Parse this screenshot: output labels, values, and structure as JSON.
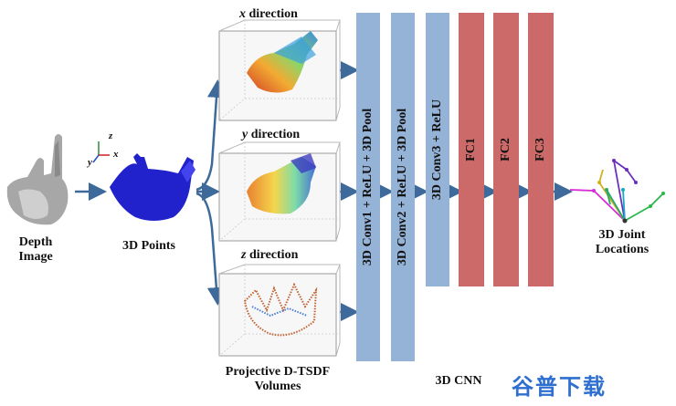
{
  "labels": {
    "depth_image": [
      "Depth",
      "Image"
    ],
    "points_3d": "3D Points",
    "x_direction": [
      "x",
      "direction"
    ],
    "y_direction": [
      "y",
      "direction"
    ],
    "z_direction": [
      "z",
      "direction"
    ],
    "volumes": [
      "Projective D-TSDF",
      "Volumes"
    ],
    "cnn": "3D CNN",
    "joints": [
      "3D Joint",
      "Locations"
    ]
  },
  "axes_letters": {
    "z": "z",
    "y": "y",
    "x": "x"
  },
  "layers": [
    {
      "type": "conv",
      "label": "3D Conv1 + ReLU + 3D Pool"
    },
    {
      "type": "conv",
      "label": "3D Conv2 + ReLU + 3D Pool"
    },
    {
      "type": "conv",
      "label": "3D Conv3 + ReLU"
    },
    {
      "type": "fc",
      "label": "FC1"
    },
    {
      "type": "fc",
      "label": "FC2"
    },
    {
      "type": "fc",
      "label": "FC3"
    }
  ],
  "colors": {
    "conv": "#94b3d6",
    "fc": "#cc6a6a",
    "arrow": "#3d6a9a",
    "points": "#2222cc"
  },
  "watermark": "谷普下载"
}
